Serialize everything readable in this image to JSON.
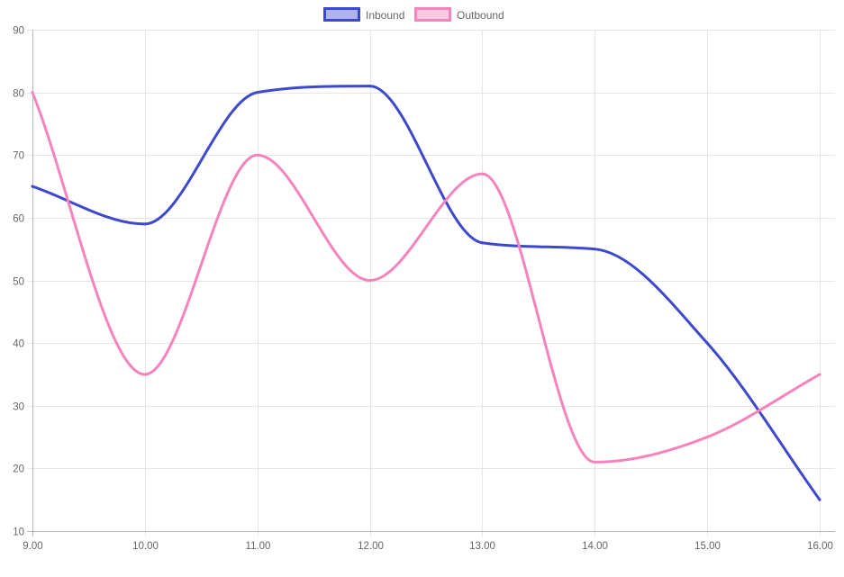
{
  "chart_data": {
    "type": "line",
    "title": "",
    "xlabel": "",
    "ylabel": "",
    "categories": [
      "9.00",
      "10.00",
      "11.00",
      "12.00",
      "13.00",
      "14.00",
      "15.00",
      "16.00"
    ],
    "series": [
      {
        "name": "Inbound",
        "values": [
          65,
          59,
          80,
          81,
          56,
          55,
          40,
          15
        ],
        "color": "#3d48cc",
        "fill": "#aeb3ee"
      },
      {
        "name": "Outbound",
        "values": [
          80,
          35,
          70,
          50,
          67,
          21,
          25,
          35
        ],
        "color": "#f584bd",
        "fill": "#fcc9e2"
      }
    ],
    "ylim": [
      10,
      90
    ],
    "yticks": [
      "10",
      "20",
      "30",
      "40",
      "50",
      "60",
      "70",
      "80",
      "90"
    ],
    "grid": true,
    "legend_position": "top-center"
  }
}
